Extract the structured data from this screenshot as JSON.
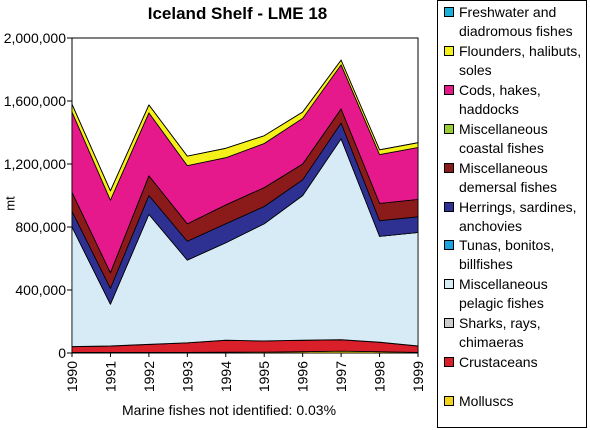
{
  "chart_data": {
    "type": "area",
    "stacked": true,
    "title": "Iceland Shelf - LME 18",
    "xlabel": "",
    "ylabel": "mt",
    "x": [
      "1990",
      "1991",
      "1992",
      "1993",
      "1994",
      "1995",
      "1996",
      "1997",
      "1998",
      "1999"
    ],
    "ylim": [
      0,
      2000000
    ],
    "yticks": [
      "0",
      "400,000",
      "800,000",
      "1,200,000",
      "1,600,000",
      "2,000,000"
    ],
    "grid": false,
    "legend_position": "right",
    "series": [
      {
        "name": "Molluscs",
        "color": "#f2d21a",
        "values": [
          4000,
          4000,
          4000,
          4000,
          5000,
          6000,
          8000,
          12000,
          8000,
          4000
        ]
      },
      {
        "name": "Crustaceans",
        "color": "#d81f2a",
        "values": [
          36000,
          40000,
          50000,
          60000,
          75000,
          70000,
          72000,
          72000,
          60000,
          40000
        ]
      },
      {
        "name": "Sharks, rays, chimaeras",
        "color": "#cccccc",
        "values": [
          1000,
          1000,
          1000,
          1000,
          1000,
          1000,
          1000,
          1000,
          1000,
          1000
        ]
      },
      {
        "name": "Miscellaneous pelagic fishes",
        "color": "#d6ebf5",
        "values": [
          759000,
          265000,
          825000,
          525000,
          619000,
          743000,
          919000,
          1275000,
          671000,
          720000
        ]
      },
      {
        "name": "Tunas, bonitos, billfishes",
        "color": "#1aa3e0",
        "values": [
          0,
          0,
          0,
          0,
          0,
          0,
          0,
          0,
          0,
          0
        ]
      },
      {
        "name": "Herrings, sardines, anchovies",
        "color": "#2e3192",
        "values": [
          100000,
          100000,
          120000,
          120000,
          120000,
          110000,
          100000,
          100000,
          100000,
          100000
        ]
      },
      {
        "name": "Miscellaneous demersal fishes",
        "color": "#8b1a1a",
        "values": [
          120000,
          100000,
          125000,
          110000,
          120000,
          120000,
          100000,
          90000,
          110000,
          110000
        ]
      },
      {
        "name": "Miscellaneous coastal fishes",
        "color": "#99cc33",
        "values": [
          0,
          0,
          0,
          0,
          0,
          0,
          0,
          0,
          0,
          0
        ]
      },
      {
        "name": "Cods, hakes, haddocks",
        "color": "#e6198c",
        "values": [
          510000,
          460000,
          400000,
          370000,
          300000,
          280000,
          290000,
          280000,
          310000,
          330000
        ]
      },
      {
        "name": "Flounders, halibuts, soles",
        "color": "#f5f01a",
        "values": [
          50000,
          60000,
          50000,
          60000,
          60000,
          50000,
          40000,
          30000,
          30000,
          30000
        ]
      },
      {
        "name": "Freshwater and diadromous fishes",
        "color": "#1ab0d8",
        "values": [
          0,
          0,
          0,
          0,
          0,
          0,
          0,
          0,
          0,
          0
        ]
      }
    ],
    "legend": [
      {
        "label": "Freshwater and diadromous fishes",
        "color": "#1ab0d8"
      },
      {
        "label": "Flounders, halibuts, soles",
        "color": "#f5f01a"
      },
      {
        "label": "Cods, hakes, haddocks",
        "color": "#e6198c"
      },
      {
        "label": "Miscellaneous coastal fishes",
        "color": "#99cc33"
      },
      {
        "label": "Miscellaneous demersal fishes",
        "color": "#8b1a1a"
      },
      {
        "label": "Herrings, sardines, anchovies",
        "color": "#2e3192"
      },
      {
        "label": "Tunas, bonitos, billfishes",
        "color": "#1aa3e0"
      },
      {
        "label": "Miscellaneous pelagic fishes",
        "color": "#d6ebf5"
      },
      {
        "label": "Sharks, rays, chimaeras",
        "color": "#cccccc"
      },
      {
        "label": "Crustaceans",
        "color": "#d81f2a"
      },
      {
        "label": "Molluscs",
        "color": "#f2d21a"
      }
    ],
    "footnote": "Marine fishes not identified: 0.03%"
  }
}
